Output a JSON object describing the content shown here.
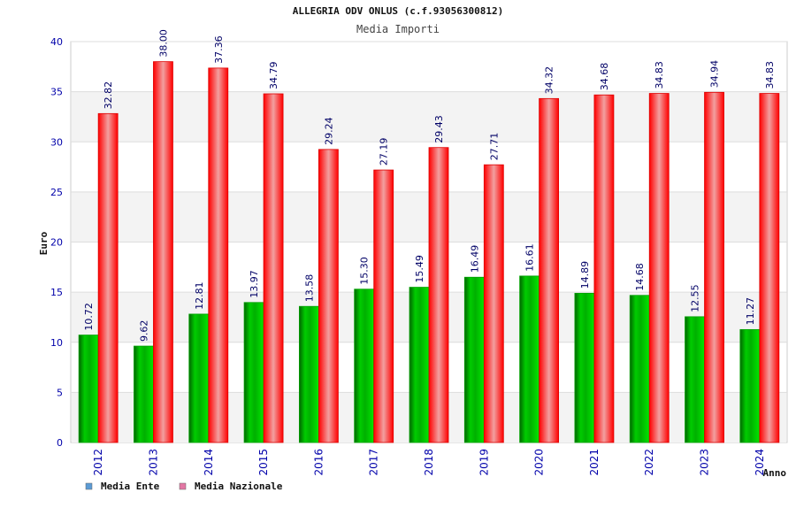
{
  "chart_data": {
    "type": "bar",
    "title": "ALLEGRIA ODV ONLUS (c.f.93056300812)",
    "subtitle": "Media Importi",
    "xlabel": "Anno",
    "ylabel": "Euro",
    "ylim": [
      0,
      40
    ],
    "yticks": [
      "0",
      "5",
      "10",
      "15",
      "20",
      "25",
      "30",
      "35",
      "40"
    ],
    "grid": true,
    "legend_position": "bottom-left",
    "categories": [
      "2012",
      "2013",
      "2014",
      "2015",
      "2016",
      "2017",
      "2018",
      "2019",
      "2020",
      "2021",
      "2022",
      "2023",
      "2024"
    ],
    "series": [
      {
        "name": "Media Ente",
        "color": "#00aa00",
        "legend_color": "#5b9bd5",
        "values": [
          10.72,
          9.62,
          12.81,
          13.97,
          13.58,
          15.3,
          15.49,
          16.49,
          16.61,
          14.89,
          14.68,
          12.55,
          11.27
        ],
        "labels": [
          "10.72",
          "9.62",
          "12.81",
          "13.97",
          "13.58",
          "15.30",
          "15.49",
          "16.49",
          "16.61",
          "14.89",
          "14.68",
          "12.55",
          "11.27"
        ]
      },
      {
        "name": "Media Nazionale",
        "color": "#ee1111",
        "legend_color": "#e377a4",
        "values": [
          32.82,
          38.0,
          37.36,
          34.79,
          29.24,
          27.19,
          29.43,
          27.71,
          34.32,
          34.68,
          34.83,
          34.94,
          34.83
        ],
        "labels": [
          "32.82",
          "38.00",
          "37.36",
          "34.79",
          "29.24",
          "27.19",
          "29.43",
          "27.71",
          "34.32",
          "34.68",
          "34.83",
          "34.94",
          "34.83"
        ]
      }
    ]
  }
}
